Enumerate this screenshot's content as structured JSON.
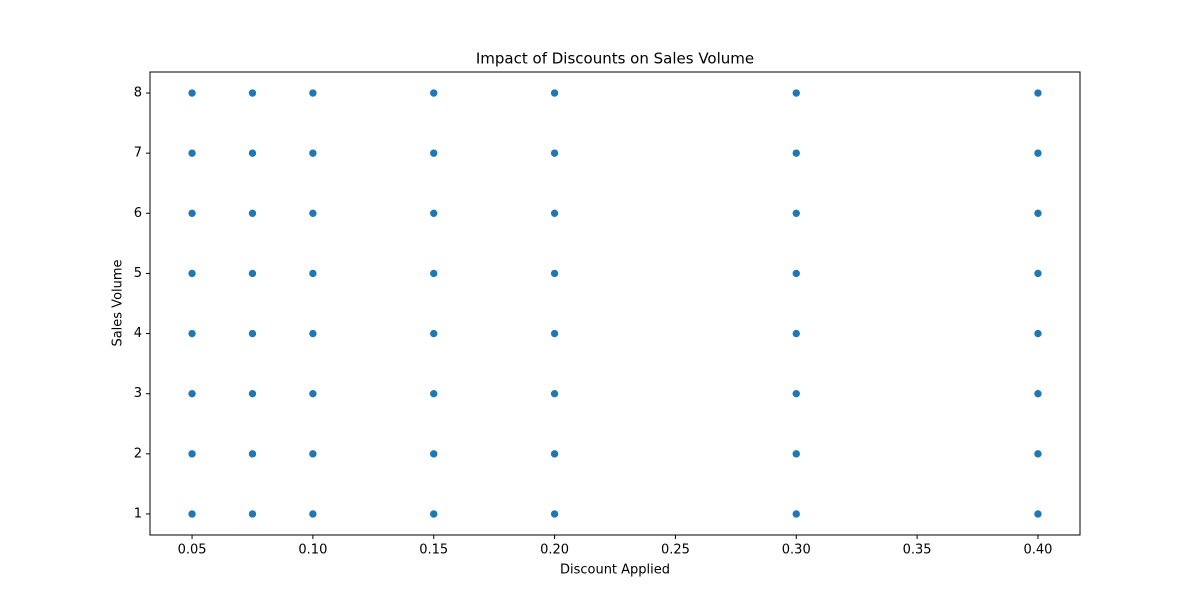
{
  "chart_data": {
    "type": "scatter",
    "title": "Impact of Discounts on Sales Volume",
    "x_label": "Discount Applied",
    "y_label": "Sales Volume",
    "x": [
      0.05,
      0.05,
      0.05,
      0.05,
      0.05,
      0.05,
      0.05,
      0.05,
      0.075,
      0.075,
      0.075,
      0.075,
      0.075,
      0.075,
      0.075,
      0.075,
      0.1,
      0.1,
      0.1,
      0.1,
      0.1,
      0.1,
      0.1,
      0.1,
      0.15,
      0.15,
      0.15,
      0.15,
      0.15,
      0.15,
      0.15,
      0.15,
      0.2,
      0.2,
      0.2,
      0.2,
      0.2,
      0.2,
      0.2,
      0.2,
      0.3,
      0.3,
      0.3,
      0.3,
      0.3,
      0.3,
      0.3,
      0.3,
      0.4,
      0.4,
      0.4,
      0.4,
      0.4,
      0.4,
      0.4,
      0.4
    ],
    "values": [
      1,
      2,
      3,
      4,
      5,
      6,
      7,
      8,
      1,
      2,
      3,
      4,
      5,
      6,
      7,
      8,
      1,
      2,
      3,
      4,
      5,
      6,
      7,
      8,
      1,
      2,
      3,
      4,
      5,
      6,
      7,
      8,
      1,
      2,
      3,
      4,
      5,
      6,
      7,
      8,
      1,
      2,
      3,
      4,
      5,
      6,
      7,
      8,
      1,
      2,
      3,
      4,
      5,
      6,
      7,
      8
    ],
    "color": "#1f77b4",
    "xlim": [
      0.0326,
      0.4174
    ],
    "xticks": [
      0.05,
      {
        "value": 0.1,
        "label": "0.10"
      },
      0.15,
      {
        "value": 0.2,
        "label": "0.20"
      },
      0.25,
      {
        "value": 0.3,
        "label": "0.30"
      },
      0.35,
      {
        "value": 0.4,
        "label": "0.40"
      }
    ],
    "ylim": [
      0.65,
      8.35
    ],
    "yticks": [
      1,
      2,
      3,
      4,
      5,
      6,
      7,
      8
    ],
    "grid": false
  }
}
